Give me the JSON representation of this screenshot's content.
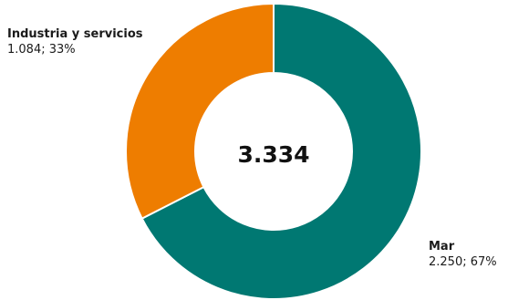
{
  "chart_data": {
    "type": "pie",
    "variant": "donut",
    "center_label": "3.334",
    "slices": [
      {
        "name": "Mar",
        "value": 2250,
        "percent": 67,
        "value_label": "2.250; 67%",
        "color": "#007872"
      },
      {
        "name": "Industria y servicios",
        "value": 1084,
        "percent": 33,
        "value_label": "1.084; 33%",
        "color": "#ee7d00"
      }
    ]
  }
}
